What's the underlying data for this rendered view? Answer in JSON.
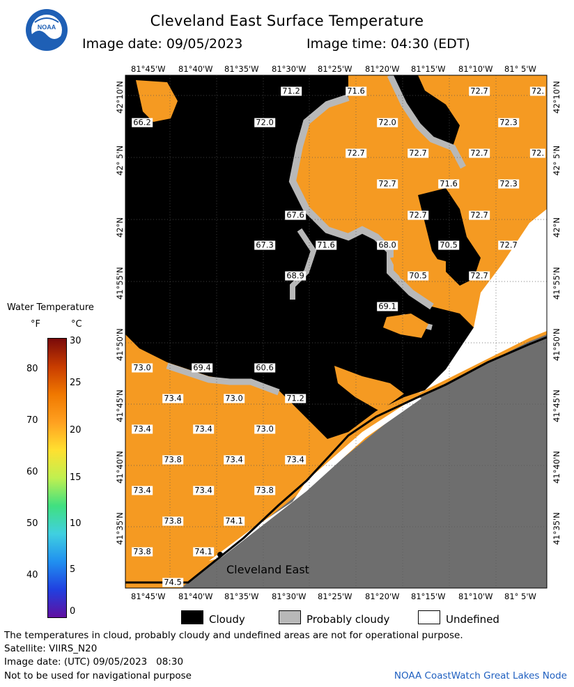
{
  "title": "Cleveland East Surface Temperature",
  "image_date": "Image date: 09/05/2023",
  "image_time": "Image time: 04:30 (EDT)",
  "logo": {
    "text": "NOAA",
    "icon": "noaa-logo"
  },
  "lon_ticks": [
    "81°45'W",
    "81°40'W",
    "81°35'W",
    "81°30'W",
    "81°25'W",
    "81°20'W",
    "81°15'W",
    "81°10'W",
    "81° 5'W"
  ],
  "lat_ticks": [
    "42°10'N",
    "42° 5'N",
    "42°N",
    "41°55'N",
    "41°50'N",
    "41°45'N",
    "41°40'N",
    "41°35'N"
  ],
  "temps": [
    {
      "label": "71.2"
    },
    {
      "label": "71.6"
    },
    {
      "label": "72.7"
    },
    {
      "label": "72."
    },
    {
      "label": "66.2"
    },
    {
      "label": "72.0"
    },
    {
      "label": "72.0"
    },
    {
      "label": "72.3"
    },
    {
      "label": "72.7"
    },
    {
      "label": "72.7"
    },
    {
      "label": "72.7"
    },
    {
      "label": "72."
    },
    {
      "label": "72.7"
    },
    {
      "label": "71.6"
    },
    {
      "label": "72.3"
    },
    {
      "label": "67.6"
    },
    {
      "label": "72.7"
    },
    {
      "label": "72.7"
    },
    {
      "label": "67.3"
    },
    {
      "label": "71.6"
    },
    {
      "label": "68.0"
    },
    {
      "label": "70.5"
    },
    {
      "label": "72.7"
    },
    {
      "label": "68.9"
    },
    {
      "label": "70.5"
    },
    {
      "label": "72.7"
    },
    {
      "label": "69.1"
    },
    {
      "label": "73.0"
    },
    {
      "label": "69.4"
    },
    {
      "label": "60.6"
    },
    {
      "label": "73.4"
    },
    {
      "label": "73.0"
    },
    {
      "label": "71.2"
    },
    {
      "label": "73.4"
    },
    {
      "label": "73.4"
    },
    {
      "label": "73.0"
    },
    {
      "label": "73.8"
    },
    {
      "label": "73.4"
    },
    {
      "label": "73.4"
    },
    {
      "label": "73.4"
    },
    {
      "label": "73.4"
    },
    {
      "label": "73.8"
    },
    {
      "label": "73.8"
    },
    {
      "label": "74.1"
    },
    {
      "label": "73.8"
    },
    {
      "label": "74.1"
    },
    {
      "label": "74.5"
    }
  ],
  "map_label": "Cleveland East",
  "colorbar": {
    "title": "Water Temperature",
    "unit_f": "°F",
    "unit_c": "°C",
    "f_labels": [
      "80",
      "70",
      "60",
      "50",
      "40"
    ],
    "c_labels": [
      "30",
      "25",
      "20",
      "15",
      "10",
      "5",
      "0"
    ],
    "colors": [
      "#7a0a0a",
      "#c83c00",
      "#f07800",
      "#ffa020",
      "#ffe030",
      "#c0f050",
      "#40e080",
      "#40d0e0",
      "#2090f0",
      "#2040e0",
      "#6010a0"
    ]
  },
  "legend": [
    {
      "label": "Cloudy",
      "color": "#000000"
    },
    {
      "label": "Probably cloudy",
      "color": "#b8b8b8"
    },
    {
      "label": "Undefined",
      "color": "#ffffff"
    }
  ],
  "footer": {
    "disclaimer": "The temperatures in cloud, probably cloudy and undefined areas are not for operational purpose.",
    "satellite": "Satellite: VIIRS_N20",
    "utc_date": "Image date: (UTC) 09/05/2023   08:30",
    "nav": "Not to be used for navigational purpose",
    "credit": "NOAA CoastWatch Great Lakes Node"
  },
  "colors": {
    "water": "#f59a22",
    "cloud": "#000000",
    "probably_cloudy": "#b8b8b8",
    "land": "#6e6e6e",
    "undefined": "#ffffff"
  }
}
